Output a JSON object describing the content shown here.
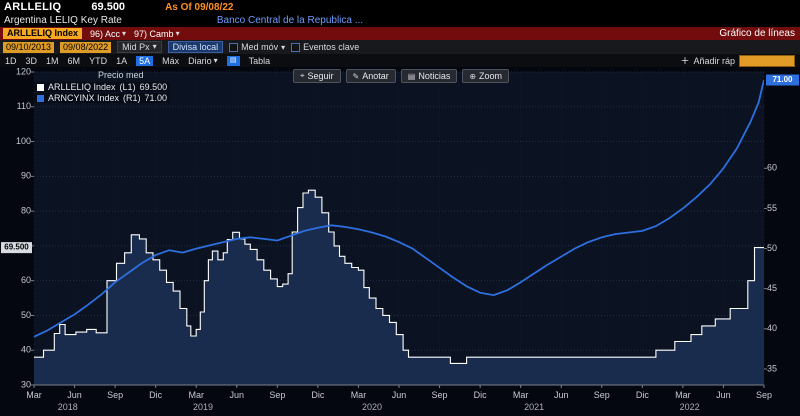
{
  "header": {
    "ticker": "ARLLELIQ",
    "price": "69.500",
    "as_of": "As Of 09/08/22",
    "name": "Argentina LELIQ Key Rate",
    "source": "Banco Central de la Republica ..."
  },
  "red_bar": {
    "security_tag": "ARLLELIQ Index",
    "actions_menu": "96) Acc",
    "edit_menu": "97) Camb",
    "view_title": "Gráfico de líneas"
  },
  "toolbar": {
    "date_from": "09/10/2013",
    "date_to": "09/08/2022",
    "price_field": "Mid Px",
    "currency_button": "Divisa local",
    "moving_avg": "Med móv",
    "key_events": "Eventos clave"
  },
  "tabs": {
    "periods": [
      "1D",
      "3D",
      "1M",
      "6M",
      "YTD",
      "1A",
      "5A",
      "Máx"
    ],
    "active_period": "5A",
    "frequency": "Diario",
    "table_label": "Tabla",
    "quick_add": "Añadir ráp"
  },
  "chart_buttons": [
    {
      "name": "track-icon",
      "glyph": "⌖",
      "label": "Seguir"
    },
    {
      "name": "annotate-icon",
      "glyph": "✎",
      "label": "Anotar"
    },
    {
      "name": "news-icon",
      "glyph": "▤",
      "label": "Noticias"
    },
    {
      "name": "zoom-icon",
      "glyph": "⊕",
      "label": "Zoom"
    }
  ],
  "legend": {
    "title": "Precio med",
    "entries": [
      {
        "label": "ARLLELIQ Index",
        "axis": "(L1)",
        "value": "69.500",
        "color": "#ffffff"
      },
      {
        "label": "ARNCYINX Index",
        "axis": "(R1)",
        "value": "71.00",
        "color": "#2e6fdf"
      }
    ]
  },
  "colors": {
    "accent_amber": "#f6a821",
    "accent_blue": "#1f6fe0",
    "line_white": "#ffffff",
    "line_blue": "#2e6fdf",
    "area_fill": "#1a2c4d",
    "plot_bg": "#0b1322",
    "grid": "#232e48"
  },
  "chart_data": {
    "type": "line",
    "title": "Precio med",
    "x_unit": "months since 2018-03",
    "x_max": 54,
    "grid": true,
    "legend_position": "top-left",
    "left_axis": {
      "min": 30,
      "max": 120,
      "ticks": [
        30,
        40,
        50,
        60,
        70,
        80,
        90,
        100,
        110,
        120
      ],
      "hide_tick": 70,
      "badge": {
        "value": 69.5,
        "label": "69.500"
      }
    },
    "right_axis": {
      "min": 33,
      "max": 72,
      "ticks": [
        35,
        40,
        45,
        50,
        55,
        60
      ],
      "badge": {
        "value": 71,
        "label": "71.00"
      }
    },
    "x_ticks": [
      {
        "m": 0,
        "label": "Mar"
      },
      {
        "m": 3,
        "label": "Jun"
      },
      {
        "m": 6,
        "label": "Sep"
      },
      {
        "m": 9,
        "label": "Dic"
      },
      {
        "m": 12,
        "label": "Mar"
      },
      {
        "m": 15,
        "label": "Jun"
      },
      {
        "m": 18,
        "label": "Sep"
      },
      {
        "m": 21,
        "label": "Dic"
      },
      {
        "m": 24,
        "label": "Mar"
      },
      {
        "m": 27,
        "label": "Jun"
      },
      {
        "m": 30,
        "label": "Sep"
      },
      {
        "m": 33,
        "label": "Dic"
      },
      {
        "m": 36,
        "label": "Mar"
      },
      {
        "m": 39,
        "label": "Jun"
      },
      {
        "m": 42,
        "label": "Sep"
      },
      {
        "m": 45,
        "label": "Dic"
      },
      {
        "m": 48,
        "label": "Mar"
      },
      {
        "m": 51,
        "label": "Jun"
      },
      {
        "m": 54,
        "label": "Sep"
      }
    ],
    "years": [
      {
        "m": 2.5,
        "label": "2018"
      },
      {
        "m": 12.5,
        "label": "2019"
      },
      {
        "m": 25,
        "label": "2020"
      },
      {
        "m": 37,
        "label": "2021"
      },
      {
        "m": 48.5,
        "label": "2022"
      }
    ],
    "series": [
      {
        "name": "ARLLELIQ Index",
        "axis": "left",
        "style": "step-area",
        "color": "#ffffff",
        "fill": "#1a2c4d",
        "last": 69.5,
        "points": [
          [
            0,
            38
          ],
          [
            0.7,
            40
          ],
          [
            1.5,
            44.8
          ],
          [
            1.9,
            47.4
          ],
          [
            2.3,
            44.5
          ],
          [
            3.1,
            45.2
          ],
          [
            3.9,
            46
          ],
          [
            4.6,
            45
          ],
          [
            5.4,
            60
          ],
          [
            6.1,
            65
          ],
          [
            6.7,
            68
          ],
          [
            7.2,
            73.2
          ],
          [
            7.8,
            72
          ],
          [
            8.3,
            68
          ],
          [
            8.8,
            66
          ],
          [
            9.3,
            63
          ],
          [
            9.8,
            59.5
          ],
          [
            10.3,
            57
          ],
          [
            10.8,
            52
          ],
          [
            11.3,
            47
          ],
          [
            11.6,
            44.1
          ],
          [
            12,
            46
          ],
          [
            12.3,
            51
          ],
          [
            12.6,
            60
          ],
          [
            12.9,
            66
          ],
          [
            13.2,
            68.5
          ],
          [
            13.6,
            66
          ],
          [
            14,
            68
          ],
          [
            14.3,
            71.8
          ],
          [
            14.7,
            73.9
          ],
          [
            15.2,
            72
          ],
          [
            15.6,
            70.5
          ],
          [
            16,
            69
          ],
          [
            16.5,
            66
          ],
          [
            17,
            63
          ],
          [
            17.5,
            60.5
          ],
          [
            18,
            58.3
          ],
          [
            18.4,
            59
          ],
          [
            18.8,
            62
          ],
          [
            19.1,
            74
          ],
          [
            19.5,
            81
          ],
          [
            19.9,
            85.2
          ],
          [
            20.3,
            86
          ],
          [
            20.8,
            84
          ],
          [
            21.3,
            79.5
          ],
          [
            21.8,
            74
          ],
          [
            22.2,
            70
          ],
          [
            22.6,
            67
          ],
          [
            23,
            65
          ],
          [
            23.5,
            63.8
          ],
          [
            24,
            63
          ],
          [
            24.4,
            58
          ],
          [
            24.8,
            55
          ],
          [
            25.3,
            52
          ],
          [
            25.8,
            50
          ],
          [
            26.3,
            48
          ],
          [
            26.8,
            44.5
          ],
          [
            27.3,
            40
          ],
          [
            27.7,
            38
          ],
          [
            30.5,
            38
          ],
          [
            30.8,
            36.2
          ],
          [
            31.8,
            36.2
          ],
          [
            32,
            38
          ],
          [
            45.8,
            38
          ],
          [
            46,
            40
          ],
          [
            47.4,
            42.5
          ],
          [
            48.6,
            44.5
          ],
          [
            49.4,
            47
          ],
          [
            50.4,
            49
          ],
          [
            51.5,
            52
          ],
          [
            52.8,
            60
          ],
          [
            53.3,
            69.5
          ],
          [
            54,
            69.5
          ]
        ]
      },
      {
        "name": "ARNCYINX Index",
        "axis": "right",
        "style": "line",
        "color": "#2e6fdf",
        "last": 71,
        "points": [
          [
            0,
            39
          ],
          [
            1,
            39.8
          ],
          [
            2,
            40.8
          ],
          [
            3,
            41.8
          ],
          [
            4,
            43
          ],
          [
            5,
            44.3
          ],
          [
            6,
            45.8
          ],
          [
            7,
            47
          ],
          [
            8,
            48.2
          ],
          [
            9,
            49.2
          ],
          [
            10,
            49.8
          ],
          [
            11,
            49.5
          ],
          [
            12,
            50
          ],
          [
            13,
            50.4
          ],
          [
            14,
            50.8
          ],
          [
            15,
            51.2
          ],
          [
            16,
            51.4
          ],
          [
            17,
            51.2
          ],
          [
            18,
            51
          ],
          [
            19,
            51.6
          ],
          [
            20,
            52.2
          ],
          [
            21,
            52.6
          ],
          [
            22,
            52.9
          ],
          [
            23,
            52.7
          ],
          [
            24,
            52.4
          ],
          [
            25,
            52
          ],
          [
            26,
            51.5
          ],
          [
            27,
            50.8
          ],
          [
            28,
            50
          ],
          [
            29,
            48.8
          ],
          [
            30,
            47.6
          ],
          [
            31,
            46.4
          ],
          [
            32,
            45.3
          ],
          [
            33,
            44.5
          ],
          [
            34,
            44.2
          ],
          [
            35,
            44.8
          ],
          [
            36,
            45.8
          ],
          [
            37,
            46.9
          ],
          [
            38,
            48
          ],
          [
            39,
            49
          ],
          [
            40,
            50
          ],
          [
            41,
            50.8
          ],
          [
            42,
            51.4
          ],
          [
            43,
            51.8
          ],
          [
            44,
            52
          ],
          [
            45,
            52.2
          ],
          [
            46,
            52.8
          ],
          [
            47,
            53.8
          ],
          [
            48,
            55
          ],
          [
            49,
            56.4
          ],
          [
            50,
            58
          ],
          [
            51,
            60
          ],
          [
            52,
            62.5
          ],
          [
            53,
            65.8
          ],
          [
            53.6,
            68.2
          ],
          [
            54,
            71
          ]
        ]
      }
    ]
  }
}
